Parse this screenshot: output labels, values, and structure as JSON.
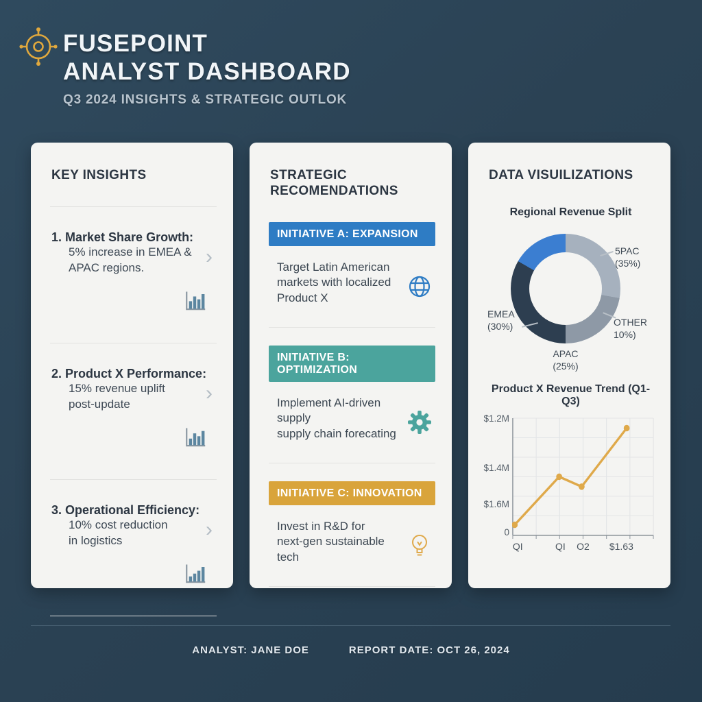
{
  "colors": {
    "background": "#2b4254",
    "card": "#f4f4f2",
    "accent_gold": "#e0a83d",
    "banner_blue": "#2e7cc4",
    "banner_teal": "#4ba49d",
    "banner_gold": "#d9a43b",
    "donut_lightgray": "#a6b1be",
    "donut_midgray": "#8e99a6",
    "donut_navy": "#2d3e50",
    "donut_blue": "#3b7ed1",
    "bar_icon": "#5c86a0"
  },
  "header": {
    "logo_icon": "compass-target-icon",
    "brand_line1": "FUSEPOINT",
    "brand_line2": "ANALYST DASHBOARD",
    "subtitle": "Q3 2024 INSIGHTS & STRATEGIC OUTLOK"
  },
  "key_insights": {
    "title": "KEY INSIGHTS",
    "items": [
      {
        "heading": "1. Market Share Growth:",
        "line1": "5% increase in EMEA &",
        "line2": "APAC regions.",
        "chevron": "›",
        "icon": "bar-chart-icon"
      },
      {
        "heading": "2. Product X Performance:",
        "line1": "15% revenue uplift",
        "line2": "post-update",
        "chevron": "›",
        "icon": "bar-chart-icon"
      },
      {
        "heading": "3. Operational Efficiency:",
        "line1": "10% cost reduction",
        "line2": "in logistics",
        "chevron": "›",
        "icon": "bar-chart-icon"
      }
    ]
  },
  "strategic": {
    "title_line1": "STRATEGIC",
    "title_line2": "RECOMENDATIONS",
    "initiatives": [
      {
        "banner": "INITIATIVE A: EXPANSION",
        "banner_color": "#2e7cc4",
        "icon": "globe-icon",
        "icon_color": "#2e7cc4",
        "lines": [
          "Target Latin American",
          "markets with localized",
          "Product X"
        ]
      },
      {
        "banner": "INITIATIVE B: OPTIMIZATION",
        "banner_color": "#4ba49d",
        "icon": "gear-icon",
        "icon_color": "#4ba49d",
        "lines": [
          "Implement AI-driven supply",
          "supply chain forecating"
        ]
      },
      {
        "banner": "INITIATIVE C: INNOVATION",
        "banner_color": "#d9a43b",
        "icon": "lightbulb-icon",
        "icon_color": "#d9a43b",
        "lines": [
          "Invest in R&D for",
          "next-gen sustainable",
          "tech"
        ]
      }
    ]
  },
  "data_viz": {
    "title": "DATA VISUILIZATIONS"
  },
  "chart_data": [
    {
      "type": "pie",
      "title": "Regional Revenue Split",
      "labels": [
        "5PAC",
        "EMEA",
        "APAC",
        "OTHER"
      ],
      "values": [
        35,
        30,
        25,
        10
      ],
      "legend_position": "callouts",
      "callouts": [
        {
          "pos": "right-top",
          "line1": "5PAC",
          "line2": "(35%)"
        },
        {
          "pos": "right-bottom",
          "line1": "OTHER",
          "line2": "10%)"
        },
        {
          "pos": "left",
          "line1": "EMEA",
          "line2": "(30%)"
        },
        {
          "pos": "bottom",
          "line1": "APAC",
          "line2": "(25%)"
        }
      ],
      "render_arcs": [
        {
          "color": "#a6b1be",
          "from": 0,
          "to": 100
        },
        {
          "color": "#8e99a6",
          "from": 100,
          "to": 180
        },
        {
          "color": "#2d3e50",
          "from": 180,
          "to": 300
        },
        {
          "color": "#3b7ed1",
          "from": 300,
          "to": 360
        }
      ]
    },
    {
      "type": "line",
      "title": "Product X Revenue Trend (Q1-Q3)",
      "color": "#dfa94a",
      "grid": true,
      "y_labels_top_to_bottom": [
        "$1.2M",
        "$1.4M",
        "$1.6M",
        "0"
      ],
      "x_labels": [
        "QI",
        "QI",
        "O2",
        "$1.63"
      ],
      "points_norm": [
        [
          0.014,
          0.91
        ],
        [
          0.33,
          0.5
        ],
        [
          0.49,
          0.585
        ],
        [
          0.81,
          0.085
        ]
      ]
    }
  ],
  "footer": {
    "analyst": "ANALYST: JANE DOE",
    "report_date": "REPORT DATE: OCT 26, 2024"
  }
}
